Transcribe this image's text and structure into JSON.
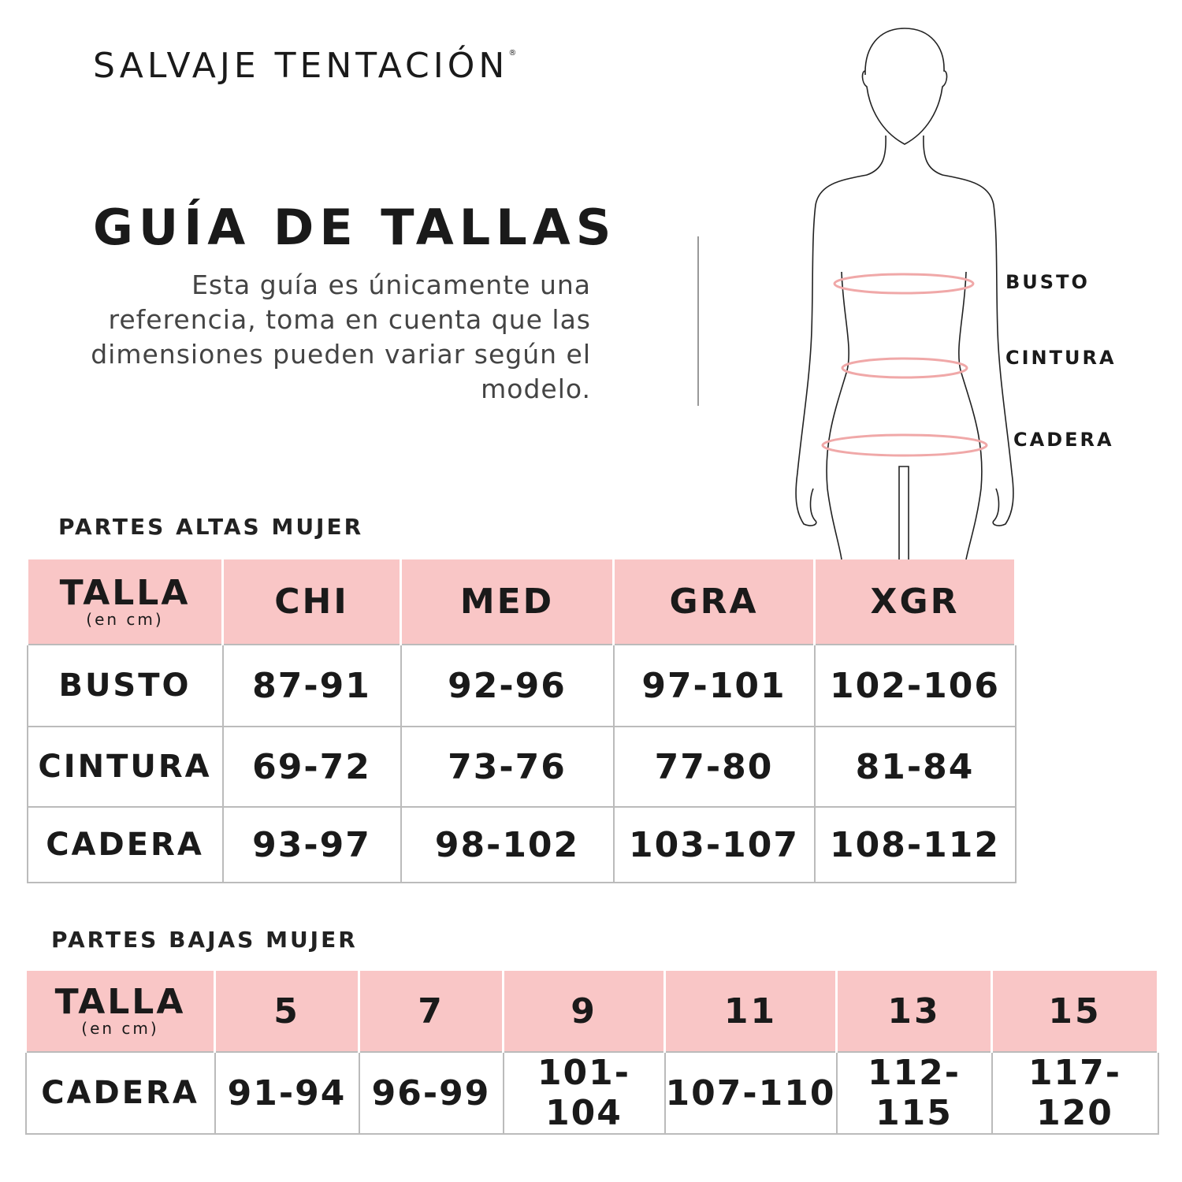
{
  "brand": {
    "name": "SALVAJE TENTACIÓN",
    "mark": "®"
  },
  "title": "GUÍA DE TALLAS",
  "description": "Esta guía es únicamente una referencia, toma en cuenta que las dimensiones pueden variar según el modelo.",
  "figure": {
    "labels": [
      "BUSTO",
      "CINTURA",
      "CADERA"
    ],
    "measure_color": "#f0a8a8"
  },
  "colors": {
    "header_bg": "#f9c6c6"
  },
  "tops": {
    "section_title": "PARTES ALTAS MUJER",
    "header": {
      "talla": "TALLA",
      "unit": "(en cm)",
      "sizes": [
        "CHI",
        "MED",
        "GRA",
        "XGR"
      ]
    },
    "rows": [
      {
        "label": "BUSTO",
        "values": [
          "87-91",
          "92-96",
          "97-101",
          "102-106"
        ]
      },
      {
        "label": "CINTURA",
        "values": [
          "69-72",
          "73-76",
          "77-80",
          "81-84"
        ]
      },
      {
        "label": "CADERA",
        "values": [
          "93-97",
          "98-102",
          "103-107",
          "108-112"
        ]
      }
    ]
  },
  "bottoms": {
    "section_title": "PARTES BAJAS MUJER",
    "header": {
      "talla": "TALLA",
      "unit": "(en cm)",
      "sizes": [
        "5",
        "7",
        "9",
        "11",
        "13",
        "15"
      ]
    },
    "rows": [
      {
        "label": "CADERA",
        "values": [
          "91-94",
          "96-99",
          "101-104",
          "107-110",
          "112-115",
          "117-120"
        ]
      }
    ]
  }
}
